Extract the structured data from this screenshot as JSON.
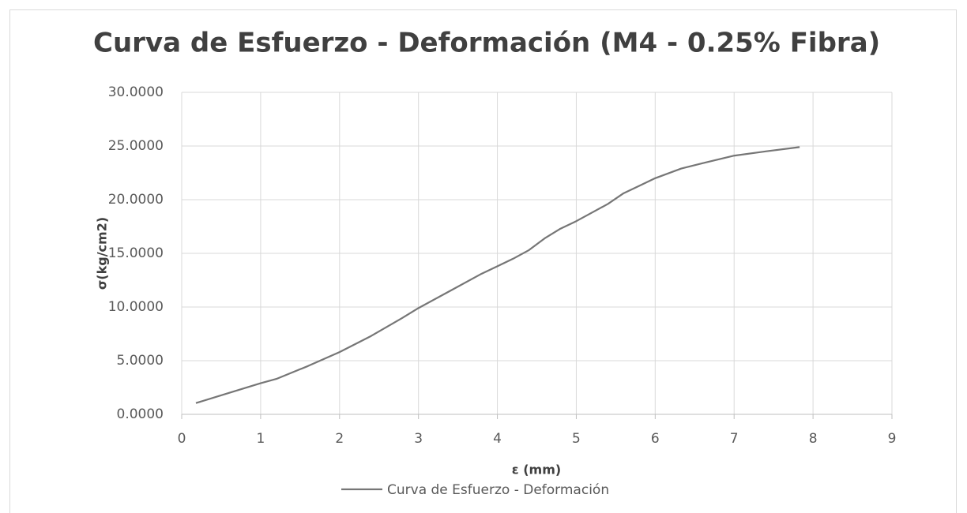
{
  "chart_data": {
    "type": "line",
    "title": "Curva de Esfuerzo - Deformación (M4 - 0.25% Fibra)",
    "x_label": "ε (mm)",
    "y_label": "σ(kg/cm2)",
    "x": [
      0.18,
      0.6,
      1.0,
      1.2,
      1.6,
      2.0,
      2.4,
      2.8,
      3.0,
      3.4,
      3.8,
      4.0,
      4.2,
      4.4,
      4.6,
      4.8,
      5.0,
      5.2,
      5.4,
      5.6,
      5.8,
      6.0,
      6.33,
      6.6,
      7.0,
      7.4,
      7.83
    ],
    "series": [
      {
        "name": "Curva de Esfuerzo - Deformación",
        "color": "#767676",
        "values": [
          1.05,
          2.0,
          2.9,
          3.3,
          4.5,
          5.8,
          7.3,
          9.0,
          9.9,
          11.5,
          13.1,
          13.8,
          14.5,
          15.3,
          16.4,
          17.3,
          18.0,
          18.8,
          19.6,
          20.6,
          21.3,
          22.0,
          22.9,
          23.4,
          24.1,
          24.5,
          24.9
        ]
      }
    ],
    "xlim": [
      0,
      9
    ],
    "xticks": [
      0,
      1,
      2,
      3,
      4,
      5,
      6,
      7,
      8,
      9
    ],
    "ylim": [
      0,
      30
    ],
    "yticks": [
      {
        "value": 0,
        "label": "0.0000"
      },
      {
        "value": 5,
        "label": "5.0000"
      },
      {
        "value": 10,
        "label": "10.0000"
      },
      {
        "value": 15,
        "label": "15.0000"
      },
      {
        "value": 20,
        "label": "20.0000"
      },
      {
        "value": 25,
        "label": "25.0000"
      },
      {
        "value": 30,
        "label": "30.0000"
      }
    ],
    "grid": true,
    "legend": "bottom"
  }
}
